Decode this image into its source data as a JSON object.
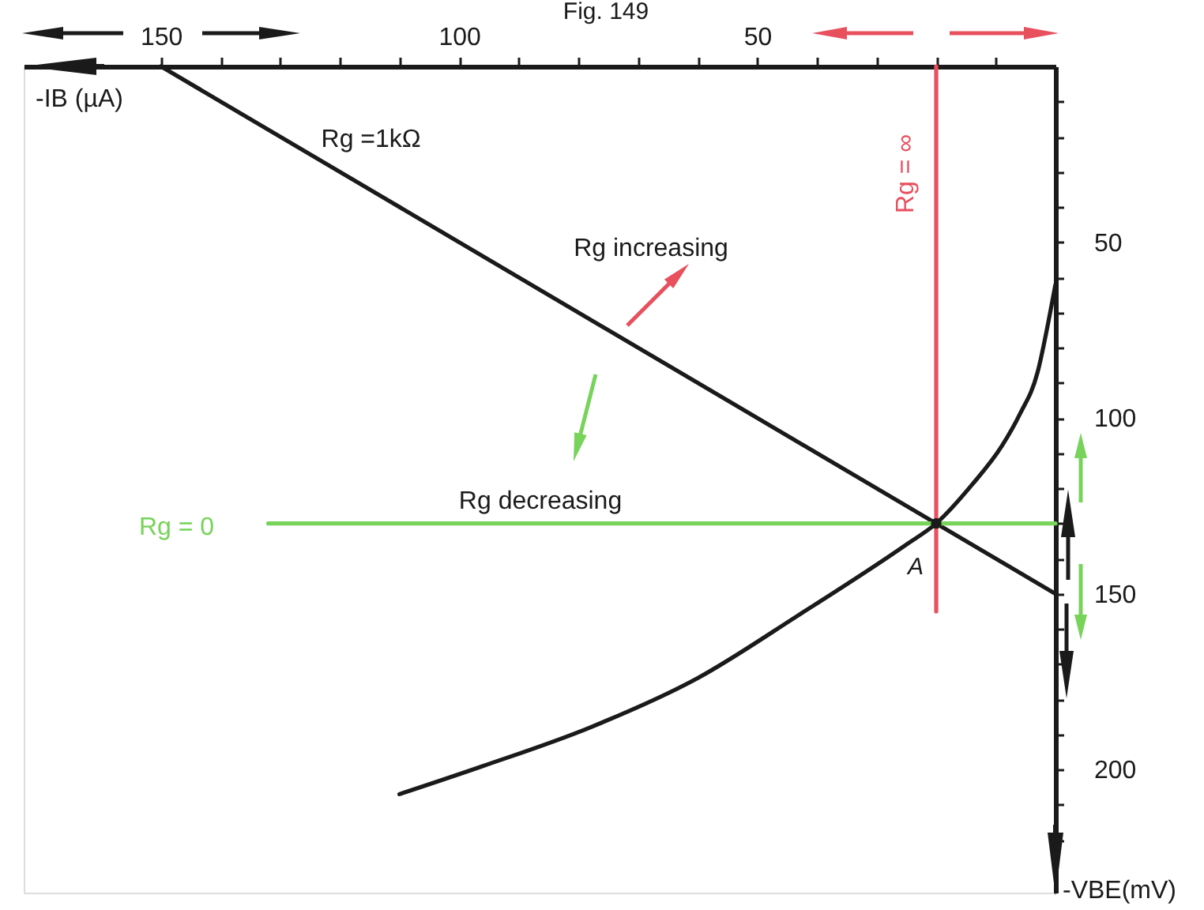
{
  "chart_data": {
    "type": "line",
    "title": "Fig. 149",
    "xlabel": "-IB (µA)",
    "ylabel": "-VBE(mV)",
    "xlim": [
      173,
      0
    ],
    "ylim": [
      235,
      0
    ],
    "xticks": [
      150,
      {
        "value": 140,
        "label": null
      },
      {
        "value": 130,
        "label": null
      },
      {
        "value": 120,
        "label": null
      },
      {
        "value": 110,
        "label": null
      },
      100,
      {
        "value": 90,
        "label": null
      },
      {
        "value": 80,
        "label": null
      },
      {
        "value": 70,
        "label": null
      },
      {
        "value": 60,
        "label": null
      },
      50,
      {
        "value": 40,
        "label": null
      },
      {
        "value": 30,
        "label": null
      },
      {
        "value": 20,
        "label": null
      },
      {
        "value": 10,
        "label": null
      }
    ],
    "yticks": [
      {
        "value": 10,
        "label": null
      },
      {
        "value": 20,
        "label": null
      },
      {
        "value": 30,
        "label": null
      },
      {
        "value": 40,
        "label": null
      },
      50,
      {
        "value": 60,
        "label": null
      },
      {
        "value": 70,
        "label": null
      },
      {
        "value": 80,
        "label": null
      },
      {
        "value": 90,
        "label": null
      },
      100,
      {
        "value": 110,
        "label": null
      },
      {
        "value": 120,
        "label": null
      },
      {
        "value": 130,
        "label": null
      },
      {
        "value": 140,
        "label": null
      },
      150,
      {
        "value": 160,
        "label": null
      },
      {
        "value": 170,
        "label": null
      },
      {
        "value": 180,
        "label": null
      },
      {
        "value": 190,
        "label": null
      },
      200,
      {
        "value": 210,
        "label": null
      },
      {
        "value": 220,
        "label": null
      }
    ],
    "series": [
      {
        "name": "Rg =1kΩ",
        "color": "#1a1a1a",
        "x": [
          150,
          0
        ],
        "values": [
          0,
          150
        ]
      },
      {
        "color": "#1a1a1a",
        "x": [
          110,
          96,
          78,
          60,
          43,
          25,
          20,
          14,
          9,
          6,
          3,
          1,
          0
        ],
        "values": [
          207,
          199,
          188,
          174,
          156,
          136,
          130,
          119,
          108,
          99,
          87,
          71,
          62
        ]
      },
      {
        "name": "Rg = 0",
        "color": "#77d35a",
        "x": [
          132,
          0
        ],
        "values": [
          130,
          130
        ]
      },
      {
        "name": "Rg = ∞",
        "color": "#e8505e",
        "x": [
          20,
          20
        ],
        "values": [
          0,
          155
        ]
      },
      {
        "type": "scatter",
        "color": "#1a1a1a",
        "x": [
          20
        ],
        "values": [
          130
        ],
        "marker": "circle"
      }
    ],
    "annotations": [
      "Rg increasing",
      "Rg decreasing",
      {
        "text": "A",
        "x": 20,
        "y": 130
      }
    ]
  }
}
